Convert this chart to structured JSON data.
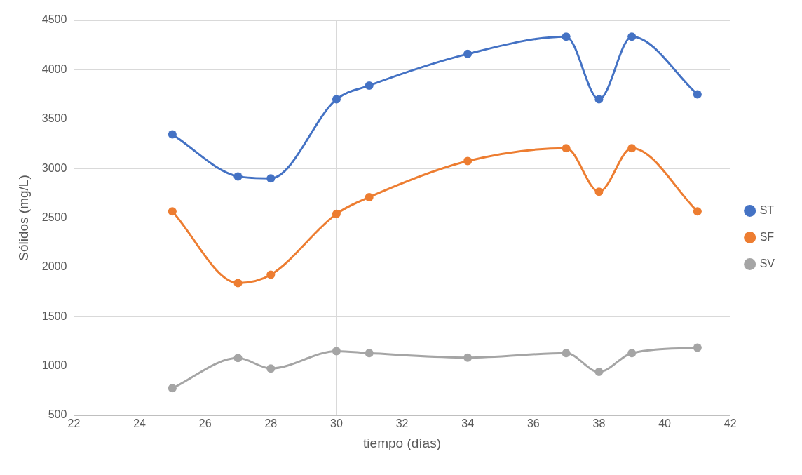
{
  "chart_data": {
    "type": "line",
    "xlabel": "tiempo (días)",
    "ylabel": "Sólidos (mg/L)",
    "x": [
      25,
      27,
      28,
      30,
      31,
      34,
      37,
      38,
      39,
      41
    ],
    "series": [
      {
        "name": "ST",
        "color": "#4472c4",
        "values": [
          3345,
          2920,
          2900,
          3700,
          3840,
          4160,
          4335,
          3700,
          4335,
          3750
        ]
      },
      {
        "name": "SF",
        "color": "#ed7d31",
        "values": [
          2565,
          1840,
          1925,
          2540,
          2710,
          3075,
          3205,
          2765,
          3205,
          2565
        ]
      },
      {
        "name": "SV",
        "color": "#a5a5a5",
        "values": [
          775,
          1080,
          975,
          1150,
          1130,
          1085,
          1130,
          940,
          1130,
          1185
        ]
      }
    ],
    "xlim": [
      22,
      42
    ],
    "xticks": [
      22,
      24,
      26,
      28,
      30,
      32,
      34,
      36,
      38,
      40,
      42
    ],
    "ylim": [
      500,
      4500
    ],
    "yticks": [
      500,
      1000,
      1500,
      2000,
      2500,
      3000,
      3500,
      4000,
      4500
    ],
    "grid": true,
    "legend": "right",
    "marker": "circle",
    "line_style": "solid"
  }
}
